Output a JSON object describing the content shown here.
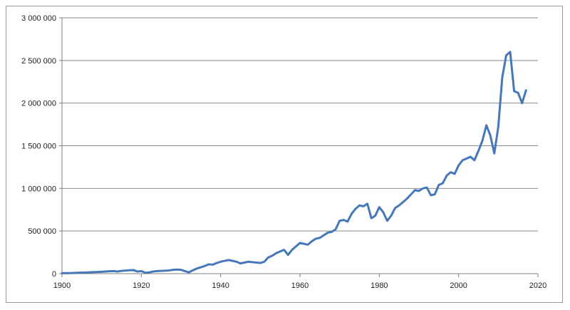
{
  "chart_data": {
    "type": "line",
    "title": "",
    "xlabel": "",
    "ylabel": "",
    "xlim": [
      1900,
      2020
    ],
    "ylim": [
      0,
      3000000
    ],
    "x_ticks": [
      "1900",
      "1920",
      "1940",
      "1960",
      "1980",
      "2000",
      "2020"
    ],
    "y_ticks": [
      "0",
      "500 000",
      "1 000 000",
      "1 500 000",
      "2 000 000",
      "2 500 000",
      "3 000 000"
    ],
    "grid": "horizontal",
    "legend": "none",
    "colors": {
      "line": "#4677b8",
      "grid": "#8a8a8a",
      "axis": "#7f7f7f"
    },
    "series": [
      {
        "x": [
          1900,
          1901,
          1902,
          1903,
          1904,
          1905,
          1906,
          1907,
          1908,
          1909,
          1910,
          1911,
          1912,
          1913,
          1914,
          1915,
          1916,
          1917,
          1918,
          1919,
          1920,
          1921,
          1922,
          1923,
          1924,
          1925,
          1926,
          1927,
          1928,
          1929,
          1930,
          1931,
          1932,
          1933,
          1934,
          1935,
          1936,
          1937,
          1938,
          1939,
          1940,
          1941,
          1942,
          1943,
          1944,
          1945,
          1946,
          1947,
          1948,
          1949,
          1950,
          1951,
          1952,
          1953,
          1954,
          1955,
          1956,
          1957,
          1958,
          1959,
          1960,
          1961,
          1962,
          1963,
          1964,
          1965,
          1966,
          1967,
          1968,
          1969,
          1970,
          1971,
          1972,
          1973,
          1974,
          1975,
          1976,
          1977,
          1978,
          1979,
          1980,
          1981,
          1982,
          1983,
          1984,
          1985,
          1986,
          1987,
          1988,
          1989,
          1990,
          1991,
          1992,
          1993,
          1994,
          1995,
          1996,
          1997,
          1998,
          1999,
          2000,
          2001,
          2002,
          2003,
          2004,
          2005,
          2006,
          2007,
          2008,
          2009,
          2010,
          2011,
          2012,
          2013,
          2014,
          2015,
          2016,
          2017
        ],
        "values": [
          5000,
          6000,
          6000,
          8000,
          10000,
          12000,
          14000,
          16000,
          18000,
          20000,
          22000,
          25000,
          28000,
          30000,
          25000,
          32000,
          36000,
          40000,
          42000,
          25000,
          30000,
          10000,
          15000,
          25000,
          30000,
          32000,
          35000,
          38000,
          45000,
          48000,
          45000,
          30000,
          15000,
          40000,
          60000,
          75000,
          90000,
          110000,
          105000,
          125000,
          140000,
          150000,
          160000,
          150000,
          140000,
          120000,
          130000,
          140000,
          135000,
          130000,
          125000,
          140000,
          190000,
          210000,
          240000,
          260000,
          280000,
          220000,
          280000,
          320000,
          360000,
          350000,
          340000,
          380000,
          410000,
          420000,
          450000,
          480000,
          490000,
          520000,
          620000,
          630000,
          610000,
          700000,
          760000,
          800000,
          790000,
          820000,
          650000,
          680000,
          780000,
          720000,
          620000,
          680000,
          770000,
          800000,
          840000,
          880000,
          930000,
          980000,
          970000,
          1000000,
          1010000,
          920000,
          930000,
          1040000,
          1060000,
          1150000,
          1190000,
          1170000,
          1270000,
          1330000,
          1350000,
          1370000,
          1330000,
          1440000,
          1560000,
          1740000,
          1620000,
          1410000,
          1720000,
          2300000,
          2560000,
          2600000,
          2140000,
          2120000,
          2000000,
          2150000
        ]
      }
    ]
  }
}
